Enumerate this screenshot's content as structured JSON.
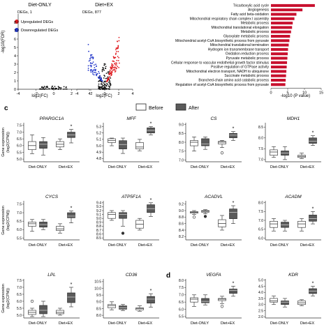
{
  "panel_c_label": "c",
  "panel_d_label": "d",
  "colors": {
    "upregulated": "#e0191e",
    "downregulated": "#1f34c9",
    "ns": "#111111",
    "bar": "#c8102e",
    "before_fill": "#ffffff",
    "after_fill": "#5a5a5a"
  },
  "legend_c": {
    "before": "Before",
    "after": "After"
  },
  "chart_data": [
    {
      "id": "volcano-diet-only",
      "type": "scatter",
      "title": "Diet-ONLY",
      "subtitle": "DEGs, 1",
      "xlabel": "log2(FC)",
      "ylabel": "-log10(FDR)",
      "xlim": [
        -4,
        4
      ],
      "ylim": [
        0,
        9
      ],
      "xticks": [
        "-4",
        "-2",
        "0",
        "2",
        "4"
      ],
      "yticks": [
        "0",
        "1",
        "2",
        "3",
        "4",
        "5",
        "6",
        "7",
        "8"
      ],
      "legend": [
        "Upregulated DEGs",
        "Downregulated DEGs"
      ],
      "clusters": [
        {
          "name": "ns",
          "n": 60,
          "xmin": -1.6,
          "xmax": 1.6,
          "ymin": 0,
          "ymax": 0.5
        }
      ]
    },
    {
      "id": "volcano-diet-ex",
      "type": "scatter",
      "title": "Diet+EX",
      "subtitle": "DEGs, 877",
      "xlabel": "log2(FC)",
      "xlim": [
        -4,
        4
      ],
      "ylim": [
        0,
        9
      ],
      "xticks": [
        "-4",
        "-2",
        "0",
        "2",
        "4"
      ],
      "clusters": [
        {
          "name": "ns",
          "n": 120,
          "xmin": -0.9,
          "xmax": 0.9,
          "ymin": 0,
          "ymax": 3.2
        },
        {
          "name": "up",
          "n": 110,
          "xmin": 0.3,
          "xmax": 2.1,
          "ymin": 0.9,
          "ymax": 6.8
        },
        {
          "name": "down",
          "n": 70,
          "xmin": -2.4,
          "xmax": -0.3,
          "ymin": 0.9,
          "ymax": 5.5
        }
      ]
    },
    {
      "id": "go-bars",
      "type": "bar",
      "orientation": "horizontal",
      "xlabel": "-log10 (P value)",
      "xlim": [
        0,
        15
      ],
      "xticks": [
        "0",
        "5",
        "10",
        "15"
      ],
      "categories": [
        "Tricarboxylic acid cycle",
        "Angiogenesis",
        "Fatty acid beta-oxidation",
        "Mitochondrial respiratory chain complex I assembly",
        "Metabolic process",
        "Mitochondrial translational elongation",
        "Metabolic process",
        "Glyoxylate metabolic process",
        "Mitochondrial acetyl-CoA biosynthetic process from pyruvate",
        "Mitochondrial translational termination",
        "Hydrogen ion transmembrane transport",
        "Oxidation-reduction process",
        "Pyruvate metabolic process",
        "Cellular response to vascular endothelial growth factor stimulus",
        "Positive regulation of GTPase activity",
        "Mitochondrial electron transport, NADH to ubiquinone",
        "Succinate metabolic process",
        "Branched-chain amino acid catabolic process",
        "Regulation of acetyl-CoA biosynthetic process from pyruvate"
      ],
      "values": [
        13.1,
        9.4,
        7.6,
        7.0,
        6.5,
        6.3,
        6.0,
        5.7,
        5.5,
        5.3,
        5.1,
        5.0,
        4.9,
        4.8,
        4.7,
        4.6,
        4.5,
        4.4,
        4.3
      ]
    },
    {
      "id": "boxes",
      "type": "box",
      "groups": [
        "Diet-ONLY",
        "Diet+EX"
      ],
      "ylabel": "Gene expression\n(log2(CPM))",
      "panels": [
        {
          "gene": "PPARGC1A",
          "yticks": [
            "5.0",
            "5.5",
            "6.0",
            "6.5",
            "7.0",
            "7.5"
          ],
          "ylim": [
            4.8,
            7.7
          ],
          "star": "*",
          "boxes": [
            [
              5.4,
              5.7,
              6.0,
              6.3,
              6.8
            ],
            [
              5.3,
              5.8,
              6.1,
              6.3,
              6.6
            ],
            [
              5.7,
              5.9,
              6.1,
              6.3,
              6.5
            ],
            [
              6.2,
              6.6,
              6.8,
              7.0,
              7.2
            ]
          ]
        },
        {
          "gene": "MFF",
          "yticks": [
            "4.8",
            "4.9",
            "5.0",
            "5.1",
            "5.2",
            "5.3"
          ],
          "ylim": [
            4.75,
            5.36
          ],
          "star": "*",
          "boxes": [
            [
              5.0,
              5.05,
              5.08,
              5.11,
              5.12
            ],
            [
              4.88,
              4.95,
              5.02,
              5.08,
              5.12
            ],
            [
              4.92,
              4.95,
              4.98,
              5.05,
              5.1
            ],
            [
              5.17,
              5.2,
              5.24,
              5.28,
              5.3
            ]
          ]
        },
        {
          "gene": "CS",
          "yticks": [
            "7.0",
            "7.5",
            "8.0",
            "8.5",
            "9.0"
          ],
          "ylim": [
            6.9,
            9.1
          ],
          "star": "*",
          "boxes": [
            [
              7.5,
              7.8,
              8.0,
              8.1,
              8.3
            ],
            [
              7.6,
              7.8,
              7.9,
              8.2,
              8.3
            ],
            [
              7.7,
              7.9,
              8.0,
              8.05,
              8.1
            ],
            [
              8.1,
              8.25,
              8.4,
              8.5,
              8.6
            ]
          ],
          "outliers": [
            [
              2,
              7.4
            ]
          ]
        },
        {
          "gene": "MDH1",
          "yticks": [
            "7.0",
            "7.5",
            "8.0",
            "8.5"
          ],
          "ylim": [
            6.9,
            8.7
          ],
          "star": "*",
          "boxes": [
            [
              7.1,
              7.2,
              7.35,
              7.45,
              7.6
            ],
            [
              7.0,
              7.2,
              7.3,
              7.4,
              7.6
            ],
            [
              7.05,
              7.1,
              7.15,
              7.2,
              7.3
            ],
            [
              7.65,
              7.75,
              7.85,
              8.0,
              8.1
            ]
          ]
        },
        {
          "gene": "CYCS",
          "yticks": [
            "5.5",
            "6.0",
            "6.5",
            "7.0",
            "7.5"
          ],
          "ylim": [
            5.4,
            7.7
          ],
          "star": "*",
          "boxes": [
            [
              5.9,
              6.2,
              6.35,
              6.45,
              6.6
            ],
            [
              6.0,
              6.15,
              6.3,
              6.45,
              6.6
            ],
            [
              5.8,
              5.95,
              6.05,
              6.2,
              6.35
            ],
            [
              6.4,
              6.7,
              6.8,
              7.0,
              7.1
            ]
          ]
        },
        {
          "gene": "ATP5F1A",
          "yticks": [
            "8.5",
            "8.6",
            "8.7",
            "8.8",
            "8.9",
            "9.0",
            "9.1",
            "9.2",
            "9.3",
            "9.4"
          ],
          "ylim": [
            8.45,
            9.45
          ],
          "star": "*",
          "boxes": [
            [
              8.95,
              9.0,
              9.1,
              9.15,
              9.2
            ],
            [
              8.8,
              9.0,
              9.1,
              9.15,
              9.2
            ],
            [
              8.7,
              8.75,
              8.85,
              8.95,
              9.0
            ],
            [
              9.05,
              9.15,
              9.25,
              9.35,
              9.4
            ]
          ],
          "outliers": [
            [
              1,
              8.62
            ]
          ]
        },
        {
          "gene": "ACADVL",
          "yticks": [
            "8.2",
            "8.4",
            "8.6",
            "8.8",
            "9.0",
            "9.2"
          ],
          "ylim": [
            8.1,
            9.3
          ],
          "star": "*",
          "boxes": [
            [
              8.88,
              8.92,
              8.95,
              8.97,
              9.0
            ],
            [
              8.9,
              8.95,
              8.97,
              9.0,
              9.03
            ],
            [
              8.4,
              8.5,
              8.6,
              8.72,
              8.85
            ],
            [
              8.6,
              8.75,
              8.95,
              9.05,
              9.15
            ]
          ],
          "outliers": [
            [
              0,
              8.8
            ],
            [
              1,
              8.82
            ]
          ]
        },
        {
          "gene": "ACADM",
          "yticks": [
            "6.0",
            "6.5",
            "7.0",
            "7.5",
            "8.0"
          ],
          "ylim": [
            5.9,
            8.1
          ],
          "star": "*",
          "boxes": [
            [
              6.4,
              6.6,
              6.8,
              6.95,
              7.1
            ],
            [
              6.4,
              6.6,
              6.75,
              6.9,
              7.0
            ],
            [
              6.4,
              6.6,
              6.8,
              6.95,
              7.1
            ],
            [
              6.8,
              6.95,
              7.1,
              7.3,
              7.5
            ]
          ]
        },
        {
          "gene": "LPL",
          "yticks": [
            "5.0",
            "5.5",
            "6.0",
            "6.5",
            "7.0",
            "7.5"
          ],
          "ylim": [
            4.8,
            7.6
          ],
          "star": "*",
          "boxes": [
            [
              4.9,
              5.05,
              5.2,
              5.35,
              5.5
            ],
            [
              4.9,
              5.1,
              5.35,
              5.7,
              6.0
            ],
            [
              5.0,
              5.1,
              5.2,
              5.35,
              5.5
            ],
            [
              5.6,
              5.9,
              6.3,
              6.6,
              7.0
            ]
          ],
          "outliers": [
            [
              0,
              6.0
            ]
          ]
        },
        {
          "gene": "CD36",
          "yticks": [
            "8.0",
            "8.5",
            "9.0",
            "9.5",
            "10.0",
            "10.5"
          ],
          "ylim": [
            7.8,
            10.7
          ],
          "star": "*",
          "boxes": [
            [
              8.4,
              8.55,
              8.7,
              8.8,
              9.0
            ],
            [
              8.35,
              8.45,
              8.55,
              8.7,
              8.8
            ],
            [
              8.3,
              8.4,
              8.5,
              8.55,
              8.7
            ],
            [
              8.6,
              8.9,
              9.2,
              9.4,
              9.6
            ]
          ]
        },
        {
          "gene": "VEGFA",
          "yticks": [
            "5.5",
            "6.0",
            "6.5",
            "7.0",
            "7.5",
            "8.0"
          ],
          "ylim": [
            5.4,
            8.1
          ],
          "star": "*",
          "boxes": [
            [
              6.2,
              6.5,
              6.7,
              6.8,
              7.0
            ],
            [
              6.3,
              6.45,
              6.55,
              6.75,
              7.0
            ],
            [
              6.4,
              6.6,
              6.7,
              6.75,
              6.9
            ],
            [
              6.9,
              7.1,
              7.3,
              7.4,
              7.6
            ]
          ],
          "outliers": [
            [
              2,
              6.2
            ]
          ]
        },
        {
          "gene": "KDR",
          "yticks": [
            "2.0",
            "2.5",
            "3.0",
            "3.5",
            "4.0",
            "4.5",
            "5.0"
          ],
          "ylim": [
            1.9,
            5.1
          ],
          "star": "*",
          "boxes": [
            [
              3.0,
              3.2,
              3.3,
              3.5,
              3.7
            ],
            [
              2.8,
              3.0,
              3.2,
              3.3,
              3.5
            ],
            [
              2.9,
              3.0,
              3.15,
              3.3,
              3.4
            ],
            [
              3.7,
              3.9,
              4.1,
              4.3,
              4.5
            ]
          ]
        }
      ]
    }
  ]
}
